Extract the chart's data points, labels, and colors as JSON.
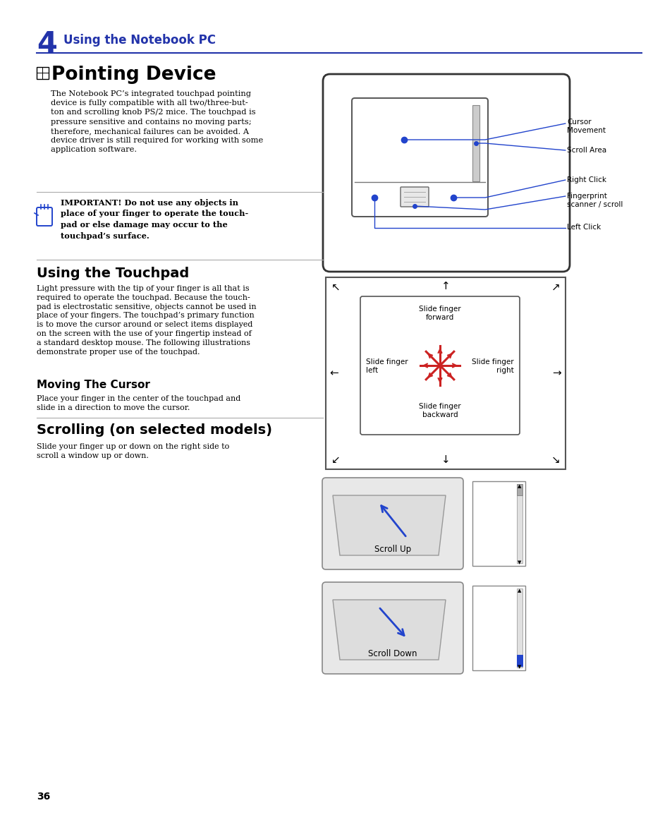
{
  "bg_color": "#ffffff",
  "chapter_num": "4",
  "chapter_title": "Using the Notebook PC",
  "chapter_color": "#2233aa",
  "section1_title": "Pointing Device",
  "section1_body": "The Notebook PC’s integrated touchpad pointing\ndevice is fully compatible with all two/three-but-\nton and scrolling knob PS/2 mice. The touchpad is\npressure sensitive and contains no moving parts;\ntherefore, mechanical failures can be avoided. A\ndevice driver is still required for working with some\napplication software.",
  "important_text": "IMPORTANT! Do not use any objects in\nplace of your finger to operate the touch-\npad or else damage may occur to the\ntouchpad’s surface.",
  "section2_title": "Using the Touchpad",
  "section2_body": "Light pressure with the tip of your finger is all that is\nrequired to operate the touchpad. Because the touch-\npad is electrostatic sensitive, objects cannot be used in\nplace of your fingers. The touchpad’s primary function\nis to move the cursor around or select items displayed\non the screen with the use of your fingertip instead of\na standard desktop mouse. The following illustrations\ndemonstrate proper use of the touchpad.",
  "subsection1_title": "Moving The Cursor",
  "subsection1_body": "Place your finger in the center of the touchpad and\nslide in a direction to move the cursor.",
  "section3_title": "Scrolling (on selected models)",
  "section3_body": "Slide your finger up or down on the right side to\nscroll a window up or down.",
  "page_num": "36",
  "blue_color": "#2244cc",
  "red_color": "#cc2222"
}
